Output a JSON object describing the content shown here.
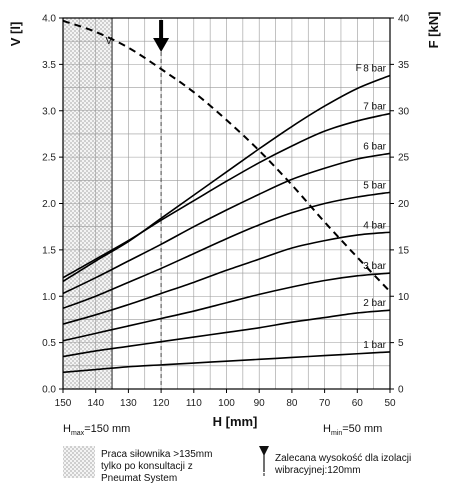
{
  "chart_data": {
    "type": "line",
    "xlabel": "H [mm]",
    "ylabel_left": "V [l]",
    "ylabel_right": "F [kN]",
    "x_ticks": [
      "150",
      "140",
      "130",
      "120",
      "110",
      "100",
      "90",
      "80",
      "70",
      "60",
      "50"
    ],
    "xlim": [
      150,
      50
    ],
    "ylim_left": [
      0,
      4.0
    ],
    "ylim_right": [
      0,
      40
    ],
    "y_ticks_left": [
      "0.0",
      "0.5",
      "1.0",
      "1.5",
      "2.0",
      "2.5",
      "3.0",
      "3.5",
      "4.0"
    ],
    "y_ticks_right": [
      "0",
      "5",
      "10",
      "15",
      "20",
      "25",
      "30",
      "35",
      "40"
    ],
    "grid": true,
    "series": [
      {
        "name": "1 bar",
        "x": [
          150,
          140,
          130,
          120,
          110,
          100,
          90,
          80,
          70,
          60,
          50
        ],
        "y": [
          1.8,
          2.1,
          2.4,
          2.6,
          2.8,
          3.0,
          3.2,
          3.4,
          3.6,
          3.8,
          4.0
        ]
      },
      {
        "name": "2 bar",
        "x": [
          150,
          140,
          130,
          120,
          110,
          100,
          90,
          80,
          70,
          60,
          50
        ],
        "y": [
          3.5,
          4.1,
          4.6,
          5.1,
          5.6,
          6.1,
          6.6,
          7.2,
          7.7,
          8.2,
          8.5
        ]
      },
      {
        "name": "3 bar",
        "x": [
          150,
          140,
          130,
          120,
          110,
          100,
          90,
          80,
          70,
          60,
          50
        ],
        "y": [
          5.2,
          6.0,
          6.8,
          7.6,
          8.4,
          9.3,
          10.2,
          11.0,
          11.7,
          12.2,
          12.5
        ]
      },
      {
        "name": "4 bar",
        "x": [
          150,
          140,
          130,
          120,
          110,
          100,
          90,
          80,
          70,
          60,
          50
        ],
        "y": [
          7.0,
          8.0,
          9.1,
          10.3,
          11.5,
          12.8,
          14.0,
          15.2,
          16.0,
          16.6,
          16.9
        ]
      },
      {
        "name": "5 bar",
        "x": [
          150,
          140,
          130,
          120,
          110,
          100,
          90,
          80,
          70,
          60,
          50
        ],
        "y": [
          8.7,
          10.0,
          11.5,
          13.0,
          14.6,
          16.2,
          17.7,
          19.0,
          20.0,
          20.7,
          21.2
        ]
      },
      {
        "name": "6 bar",
        "x": [
          150,
          140,
          130,
          120,
          110,
          100,
          90,
          80,
          70,
          60,
          50
        ],
        "y": [
          10.3,
          12.0,
          13.8,
          15.6,
          17.5,
          19.3,
          21.0,
          22.6,
          23.8,
          24.8,
          25.4
        ]
      },
      {
        "name": "7 bar",
        "x": [
          150,
          140,
          130,
          120,
          110,
          100,
          90,
          80,
          70,
          60,
          50
        ],
        "y": [
          12.0,
          14.0,
          16.0,
          18.2,
          20.3,
          22.4,
          24.4,
          26.2,
          27.8,
          28.9,
          29.7
        ]
      },
      {
        "name": "8 bar",
        "x": [
          150,
          140,
          130,
          120,
          110,
          100,
          90,
          80,
          70,
          60,
          50
        ],
        "y": [
          11.6,
          13.8,
          15.9,
          18.4,
          20.9,
          23.4,
          25.9,
          28.3,
          30.5,
          32.4,
          33.8
        ]
      }
    ],
    "volume_curve": {
      "name": "V",
      "x": [
        150,
        140,
        130,
        120,
        110,
        100,
        90,
        80,
        70,
        60,
        50
      ],
      "y": [
        3.97,
        3.85,
        3.68,
        3.45,
        3.2,
        2.9,
        2.57,
        2.2,
        1.8,
        1.42,
        1.05
      ]
    },
    "annotations": {
      "v_label": "V",
      "f_label": "F",
      "hmax_prefix": "H",
      "hmax_sub": "max",
      "hmax_value": "=150 mm",
      "hmin_prefix": "H",
      "hmin_sub": "min",
      "hmin_value": "=50 mm",
      "recommended_x": 120,
      "restricted_x_from": 150,
      "restricted_x_to": 135,
      "solid_line_x": 135
    },
    "legend": {
      "hatch_text": [
        "Praca siłownika >135mm",
        "tylko po konsultacji z",
        "Pneumat System"
      ],
      "arrow_text": [
        "Zalecana wysokość dla izolacji",
        "wibracyjnej:120mm"
      ]
    }
  }
}
